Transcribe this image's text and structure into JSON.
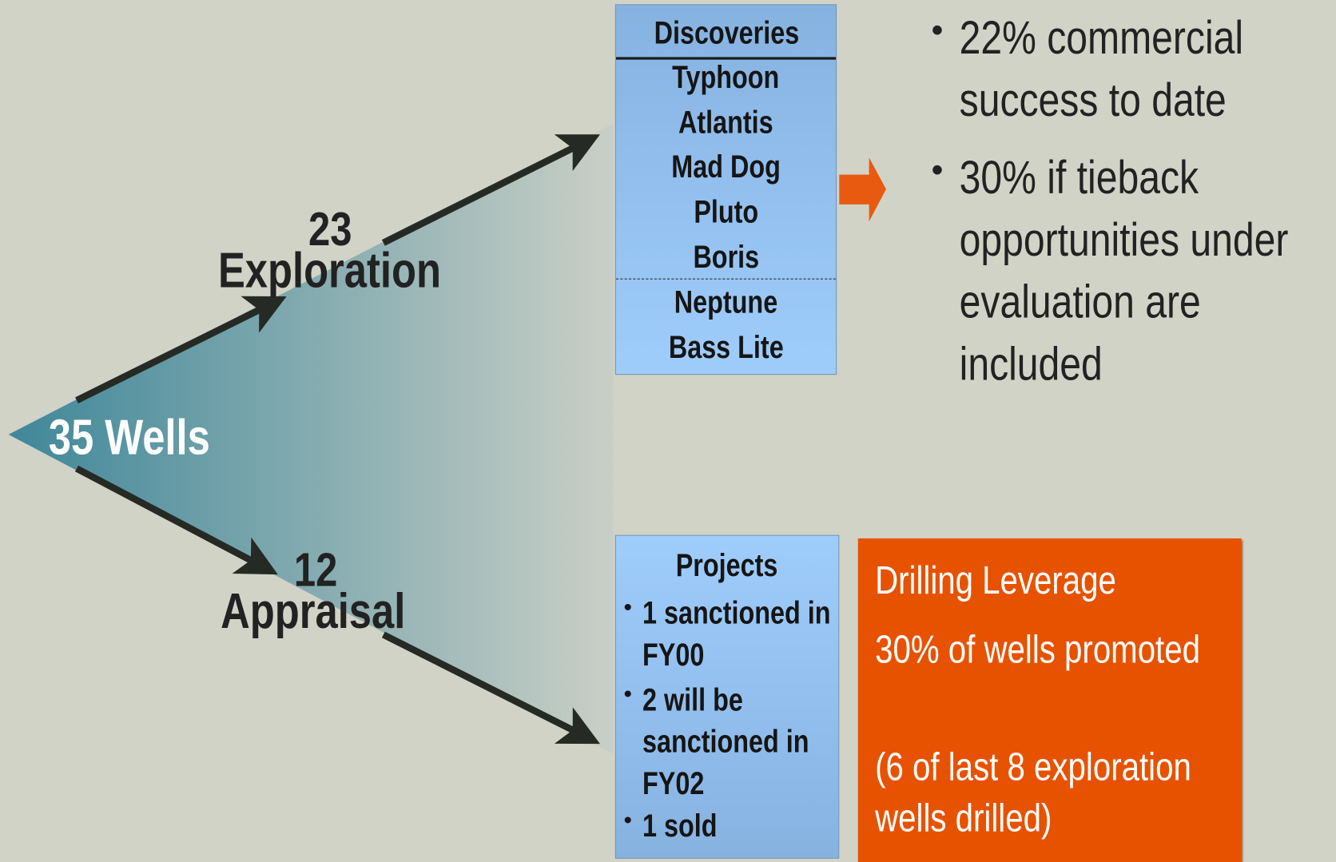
{
  "wells": "35 Wells",
  "exploration": {
    "count": "23",
    "label": "Exploration"
  },
  "appraisal": {
    "count": "12",
    "label": "Appraisal"
  },
  "discoveries": {
    "title": "Discoveries",
    "items": [
      "Typhoon",
      "Atlantis",
      "Mad Dog",
      "Pluto",
      "Boris",
      "Neptune",
      "Bass Lite"
    ]
  },
  "bullets": [
    "22% commercial success to date",
    "30% if tieback opportunities under evaluation are included"
  ],
  "projects": {
    "title": "Projects",
    "items": [
      "1 sanctioned in FY00",
      "2 will be sanctioned in FY02",
      "1 sold"
    ]
  },
  "leverage": {
    "title": "Drilling Leverage",
    "lines": [
      "30% of wells promoted",
      "(6 of last 8 exploration wells drilled)"
    ]
  }
}
